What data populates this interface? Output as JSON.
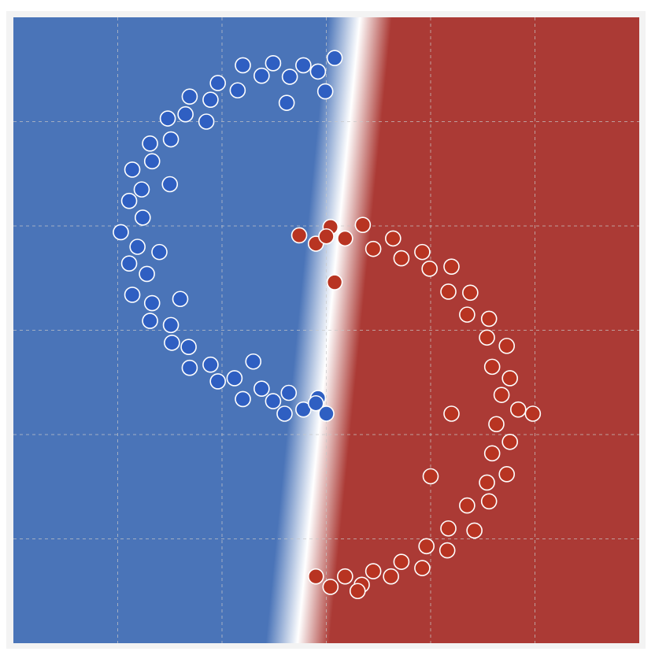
{
  "chart_data": {
    "type": "scatter",
    "xlim": [
      0,
      6
    ],
    "ylim": [
      0,
      6
    ],
    "xticks": [
      1,
      2,
      3,
      4,
      5
    ],
    "yticks": [
      1,
      2,
      3,
      4,
      5
    ],
    "grid": true,
    "region_colors": [
      "#4a74b8",
      "#ffffff",
      "#ab3a35"
    ],
    "series": [
      {
        "color": "#2f5fc2",
        "x": [
          3.08,
          2.92,
          2.78,
          2.65,
          2.49,
          2.38,
          2.2,
          2.15,
          1.96,
          1.89,
          1.69,
          1.65,
          1.48,
          1.51,
          1.31,
          1.33,
          1.14,
          1.23,
          1.11,
          1.24,
          1.03,
          1.19,
          1.11,
          1.28,
          1.14,
          1.33,
          1.31,
          1.51,
          1.52,
          1.68,
          1.69,
          1.89,
          1.96,
          2.12,
          2.2,
          2.38,
          2.49,
          2.64,
          2.78,
          2.92,
          2.99,
          2.62,
          1.85,
          1.5,
          1.4,
          1.6,
          2.3,
          2.9,
          2.6,
          3.0
        ],
        "values": [
          5.61,
          5.48,
          5.54,
          5.43,
          5.56,
          5.44,
          5.54,
          5.3,
          5.37,
          5.21,
          5.24,
          5.07,
          5.03,
          4.83,
          4.79,
          4.62,
          4.54,
          4.35,
          4.24,
          4.08,
          3.94,
          3.8,
          3.64,
          3.54,
          3.34,
          3.26,
          3.09,
          3.05,
          2.88,
          2.84,
          2.64,
          2.67,
          2.51,
          2.54,
          2.34,
          2.44,
          2.32,
          2.4,
          2.24,
          2.35,
          5.29,
          5.18,
          5.0,
          4.4,
          3.75,
          3.3,
          2.7,
          2.3,
          2.2,
          2.2
        ]
      },
      {
        "color": "#b83422",
        "x": [
          2.74,
          2.9,
          3.04,
          3.18,
          3.35,
          3.45,
          3.64,
          3.72,
          3.92,
          3.99,
          4.2,
          4.17,
          4.38,
          4.35,
          4.56,
          4.54,
          4.73,
          4.59,
          4.76,
          4.68,
          4.84,
          4.63,
          4.76,
          4.59,
          4.73,
          4.54,
          4.56,
          4.35,
          4.42,
          4.17,
          4.16,
          3.96,
          3.92,
          3.72,
          3.62,
          3.45,
          3.34,
          3.18,
          3.04,
          2.9,
          3.0,
          3.08,
          4.98,
          4.2,
          4.0,
          3.3
        ],
        "values": [
          3.91,
          3.83,
          3.99,
          3.88,
          4.01,
          3.78,
          3.88,
          3.69,
          3.75,
          3.59,
          3.61,
          3.37,
          3.36,
          3.15,
          3.11,
          2.93,
          2.85,
          2.65,
          2.54,
          2.38,
          2.24,
          2.1,
          1.93,
          1.82,
          1.62,
          1.54,
          1.36,
          1.32,
          1.08,
          1.1,
          0.89,
          0.93,
          0.72,
          0.78,
          0.64,
          0.69,
          0.56,
          0.64,
          0.54,
          0.64,
          3.9,
          3.46,
          2.2,
          2.2,
          1.6,
          0.5
        ]
      }
    ]
  }
}
